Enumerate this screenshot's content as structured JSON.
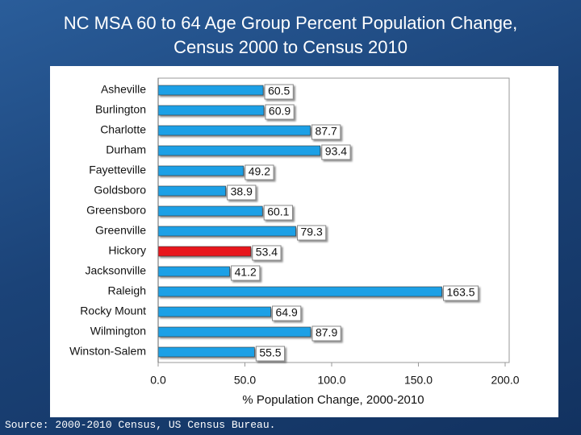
{
  "chart_data": {
    "type": "hbar",
    "title": "NC MSA 60 to 64 Age Group Percent Population Change, Census 2000 to Census 2010",
    "categories": [
      "Asheville",
      "Burlington",
      "Charlotte",
      "Durham",
      "Fayetteville",
      "Goldsboro",
      "Greensboro",
      "Greenville",
      "Hickory",
      "Jacksonville",
      "Raleigh",
      "Rocky Mount",
      "Wilmington",
      "Winston-Salem"
    ],
    "values": [
      60.5,
      60.9,
      87.7,
      93.4,
      49.2,
      38.9,
      60.1,
      79.3,
      53.4,
      41.2,
      163.5,
      64.9,
      87.9,
      55.5
    ],
    "colors": [
      "#1ea0e6",
      "#1ea0e6",
      "#1ea0e6",
      "#1ea0e6",
      "#1ea0e6",
      "#1ea0e6",
      "#1ea0e6",
      "#1ea0e6",
      "#e8141c",
      "#1ea0e6",
      "#1ea0e6",
      "#1ea0e6",
      "#1ea0e6",
      "#1ea0e6"
    ],
    "xlabel": "% Population Change, 2000-2010",
    "xlim": [
      0,
      200
    ],
    "xticks": [
      {
        "value": 0,
        "label": "0.0"
      },
      {
        "value": 50,
        "label": "50.0"
      },
      {
        "value": 100,
        "label": "100.0"
      },
      {
        "value": 150,
        "label": "150.0"
      },
      {
        "value": 200,
        "label": "200.0"
      }
    ],
    "source": "Source: 2000-2010 Census, US Census Bureau."
  }
}
